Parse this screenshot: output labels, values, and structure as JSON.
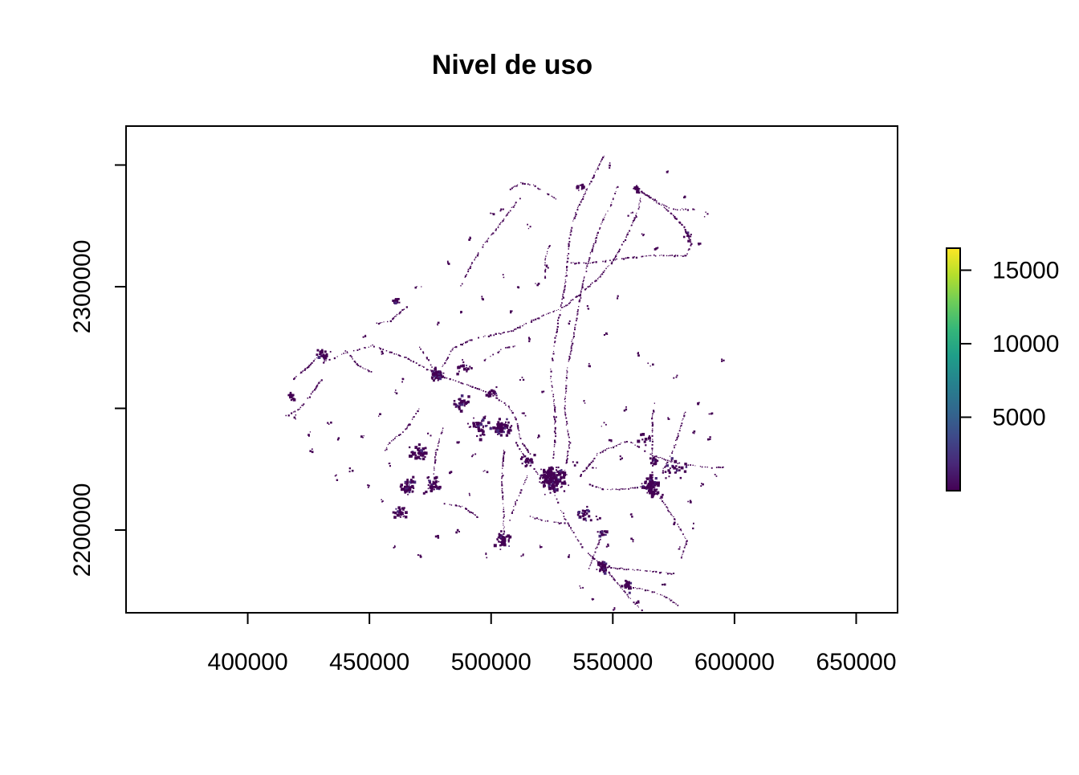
{
  "chart_data": {
    "type": "heatmap",
    "title": "Nivel de uso",
    "xlabel": "",
    "ylabel": "",
    "xlim": [
      350000,
      667000
    ],
    "ylim": [
      2166000,
      2366000
    ],
    "x_ticks": [
      400000,
      450000,
      500000,
      550000,
      600000,
      650000
    ],
    "x_tick_labels": [
      "400000",
      "450000",
      "500000",
      "550000",
      "600000",
      "650000"
    ],
    "y_ticks": [
      2200000,
      2250000,
      2300000,
      2350000
    ],
    "y_tick_labels": [
      "2200000",
      "",
      "2300000",
      ""
    ],
    "legend": {
      "position": "right",
      "range": [
        0,
        16500
      ],
      "ticks": [
        5000,
        10000,
        15000
      ],
      "tick_labels": [
        "5000",
        "10000",
        "15000"
      ],
      "colors": [
        "#440154",
        "#482878",
        "#3E4A89",
        "#31688E",
        "#26828E",
        "#1F9E89",
        "#35B779",
        "#6DCD59",
        "#B4DE2C",
        "#FDE725"
      ]
    },
    "grid": false,
    "clusters": [
      {
        "x": 525000,
        "y": 2221000,
        "r": 7000,
        "n": 180
      },
      {
        "x": 505000,
        "y": 2242000,
        "r": 5000,
        "n": 70
      },
      {
        "x": 478000,
        "y": 2264000,
        "r": 3500,
        "n": 50
      },
      {
        "x": 566000,
        "y": 2218000,
        "r": 5500,
        "n": 80
      },
      {
        "x": 505000,
        "y": 2196000,
        "r": 4000,
        "n": 60
      },
      {
        "x": 466000,
        "y": 2217000,
        "r": 4500,
        "n": 55
      },
      {
        "x": 476000,
        "y": 2218000,
        "r": 4500,
        "n": 45
      },
      {
        "x": 463000,
        "y": 2207000,
        "r": 3500,
        "n": 30
      },
      {
        "x": 546000,
        "y": 2185000,
        "r": 3000,
        "n": 35
      },
      {
        "x": 556000,
        "y": 2177000,
        "r": 2500,
        "n": 20
      },
      {
        "x": 560000,
        "y": 2340000,
        "r": 2000,
        "n": 18
      },
      {
        "x": 461000,
        "y": 2294000,
        "r": 2000,
        "n": 15
      },
      {
        "x": 431000,
        "y": 2272000,
        "r": 3500,
        "n": 22
      },
      {
        "x": 418000,
        "y": 2255000,
        "r": 2500,
        "n": 14
      },
      {
        "x": 495000,
        "y": 2242000,
        "r": 6000,
        "n": 45
      },
      {
        "x": 470000,
        "y": 2232000,
        "r": 5500,
        "n": 40
      },
      {
        "x": 488000,
        "y": 2252000,
        "r": 4500,
        "n": 28
      },
      {
        "x": 538000,
        "y": 2206000,
        "r": 4500,
        "n": 25
      },
      {
        "x": 515000,
        "y": 2228000,
        "r": 4000,
        "n": 25
      },
      {
        "x": 576000,
        "y": 2226000,
        "r": 5500,
        "n": 30
      },
      {
        "x": 567000,
        "y": 2228000,
        "r": 2500,
        "n": 15
      },
      {
        "x": 546000,
        "y": 2198000,
        "r": 3500,
        "n": 15
      },
      {
        "x": 489000,
        "y": 2267000,
        "r": 4500,
        "n": 18
      },
      {
        "x": 500000,
        "y": 2256000,
        "r": 3500,
        "n": 16
      },
      {
        "x": 537000,
        "y": 2341000,
        "r": 2000,
        "n": 10
      },
      {
        "x": 581000,
        "y": 2321000,
        "r": 2500,
        "n": 12
      },
      {
        "x": 563000,
        "y": 2237000,
        "r": 3500,
        "n": 12
      }
    ],
    "tracks": [
      [
        [
          516000,
          2231000
        ],
        [
          512000,
          2237000
        ],
        [
          510000,
          2246000
        ],
        [
          507000,
          2251000
        ],
        [
          500000,
          2256000
        ],
        [
          490000,
          2260000
        ],
        [
          478000,
          2264000
        ],
        [
          465000,
          2271000
        ],
        [
          451000,
          2276000
        ],
        [
          440000,
          2273000
        ],
        [
          428000,
          2268000
        ]
      ],
      [
        [
          478000,
          2264000
        ],
        [
          484000,
          2275000
        ],
        [
          493000,
          2279000
        ],
        [
          508000,
          2282000
        ],
        [
          518000,
          2287000
        ],
        [
          530000,
          2292000
        ],
        [
          544000,
          2304000
        ],
        [
          550000,
          2311000
        ],
        [
          555000,
          2320000
        ],
        [
          560000,
          2331000
        ],
        [
          562000,
          2340000
        ]
      ],
      [
        [
          535000,
          2221000
        ],
        [
          544000,
          2232000
        ],
        [
          556000,
          2237000
        ],
        [
          566000,
          2231000
        ],
        [
          575000,
          2228000
        ],
        [
          588000,
          2226000
        ],
        [
          596000,
          2226000
        ]
      ],
      [
        [
          525000,
          2217000
        ],
        [
          530000,
          2205000
        ],
        [
          538000,
          2192000
        ],
        [
          546000,
          2185000
        ],
        [
          552000,
          2178000
        ],
        [
          557000,
          2172000
        ],
        [
          562000,
          2167000
        ]
      ],
      [
        [
          546000,
          2185000
        ],
        [
          558000,
          2184000
        ],
        [
          569000,
          2183000
        ],
        [
          576000,
          2182000
        ]
      ],
      [
        [
          568000,
          2215000
        ],
        [
          575000,
          2205000
        ],
        [
          580000,
          2196000
        ],
        [
          578000,
          2188000
        ]
      ],
      [
        [
          557000,
          2177000
        ],
        [
          566000,
          2175000
        ],
        [
          573000,
          2172000
        ],
        [
          577000,
          2169000
        ]
      ],
      [
        [
          530000,
          2224000
        ],
        [
          532000,
          2236000
        ],
        [
          530000,
          2250000
        ],
        [
          531000,
          2266000
        ],
        [
          534000,
          2282000
        ],
        [
          537000,
          2300000
        ],
        [
          541000,
          2315000
        ],
        [
          545000,
          2326000
        ],
        [
          549000,
          2334000
        ],
        [
          552000,
          2342000
        ]
      ],
      [
        [
          560000,
          2340000
        ],
        [
          574000,
          2332000
        ],
        [
          584000,
          2332000
        ]
      ],
      [
        [
          562000,
          2339000
        ],
        [
          572000,
          2332000
        ],
        [
          579000,
          2325000
        ],
        [
          582000,
          2318000
        ],
        [
          580000,
          2313000
        ],
        [
          566000,
          2313000
        ],
        [
          555000,
          2312000
        ],
        [
          540000,
          2310000
        ],
        [
          532000,
          2310000
        ]
      ],
      [
        [
          566000,
          2221000
        ],
        [
          566000,
          2234000
        ],
        [
          566000,
          2246000
        ],
        [
          567000,
          2253000
        ]
      ],
      [
        [
          570000,
          2224000
        ],
        [
          575000,
          2234000
        ],
        [
          578000,
          2244000
        ],
        [
          580000,
          2250000
        ]
      ],
      [
        [
          546000,
          2354000
        ],
        [
          543000,
          2348000
        ],
        [
          539000,
          2340000
        ],
        [
          535000,
          2332000
        ],
        [
          532000,
          2321000
        ],
        [
          531000,
          2310000
        ],
        [
          530000,
          2300000
        ],
        [
          528000,
          2290000
        ],
        [
          526000,
          2278000
        ],
        [
          524000,
          2264000
        ],
        [
          526000,
          2250000
        ],
        [
          526000,
          2238000
        ],
        [
          525000,
          2228000
        ]
      ],
      [
        [
          522000,
          2304000
        ],
        [
          522000,
          2312000
        ],
        [
          524000,
          2318000
        ]
      ],
      [
        [
          487000,
          2300000
        ],
        [
          492000,
          2310000
        ],
        [
          497000,
          2318000
        ],
        [
          502000,
          2324000
        ],
        [
          507000,
          2331000
        ],
        [
          512000,
          2337000
        ]
      ],
      [
        [
          507000,
          2340000
        ],
        [
          512000,
          2343000
        ],
        [
          517000,
          2342000
        ],
        [
          527000,
          2336000
        ]
      ],
      [
        [
          465000,
          2292000
        ],
        [
          458000,
          2286000
        ],
        [
          452000,
          2285000
        ]
      ],
      [
        [
          478000,
          2262000
        ],
        [
          474000,
          2270000
        ],
        [
          470000,
          2276000
        ]
      ],
      [
        [
          470000,
          2250000
        ],
        [
          465000,
          2242000
        ],
        [
          458000,
          2236000
        ],
        [
          455000,
          2231000
        ]
      ],
      [
        [
          480000,
          2242000
        ],
        [
          477000,
          2232000
        ],
        [
          476000,
          2222000
        ]
      ],
      [
        [
          505000,
          2233000
        ],
        [
          504000,
          2220000
        ],
        [
          505000,
          2208000
        ],
        [
          505000,
          2198000
        ]
      ],
      [
        [
          510000,
          2236000
        ],
        [
          515000,
          2228000
        ],
        [
          520000,
          2222000
        ]
      ],
      [
        [
          430000,
          2262000
        ],
        [
          425000,
          2255000
        ],
        [
          421000,
          2250000
        ],
        [
          415000,
          2247000
        ]
      ],
      [
        [
          428000,
          2271000
        ],
        [
          423000,
          2266000
        ],
        [
          418000,
          2262000
        ]
      ],
      [
        [
          440000,
          2274000
        ],
        [
          445000,
          2268000
        ],
        [
          451000,
          2265000
        ]
      ],
      [
        [
          497000,
          2270000
        ],
        [
          505000,
          2275000
        ],
        [
          511000,
          2276000
        ]
      ],
      [
        [
          540000,
          2219000
        ],
        [
          546000,
          2217000
        ],
        [
          554000,
          2217000
        ],
        [
          562000,
          2218000
        ]
      ],
      [
        [
          545000,
          2198000
        ],
        [
          542000,
          2190000
        ],
        [
          540000,
          2184000
        ]
      ],
      [
        [
          515000,
          2223000
        ],
        [
          510000,
          2212000
        ],
        [
          507000,
          2203000
        ]
      ],
      [
        [
          530000,
          2203000
        ],
        [
          522000,
          2204000
        ],
        [
          515000,
          2206000
        ]
      ],
      [
        [
          495000,
          2205000
        ],
        [
          488000,
          2210000
        ],
        [
          480000,
          2211000
        ]
      ]
    ],
    "scatter_points": [
      [
        557000,
        2207000
      ],
      [
        548000,
        2194000
      ],
      [
        544000,
        2205000
      ],
      [
        558000,
        2196000
      ],
      [
        575000,
        2203000
      ],
      [
        512000,
        2262000
      ],
      [
        521000,
        2257000
      ],
      [
        526000,
        2247000
      ],
      [
        515000,
        2278000
      ],
      [
        508000,
        2290000
      ],
      [
        505000,
        2305000
      ],
      [
        496000,
        2296000
      ],
      [
        488000,
        2290000
      ],
      [
        511000,
        2300000
      ],
      [
        519000,
        2302000
      ],
      [
        515000,
        2325000
      ],
      [
        504000,
        2332000
      ],
      [
        532000,
        2286000
      ],
      [
        540000,
        2292000
      ],
      [
        552000,
        2296000
      ],
      [
        560000,
        2273000
      ],
      [
        565000,
        2268000
      ],
      [
        575000,
        2263000
      ],
      [
        585000,
        2253000
      ],
      [
        590000,
        2248000
      ],
      [
        595000,
        2270000
      ],
      [
        589000,
        2238000
      ],
      [
        583000,
        2240000
      ],
      [
        573000,
        2246000
      ],
      [
        555000,
        2250000
      ],
      [
        546000,
        2244000
      ],
      [
        538000,
        2253000
      ],
      [
        540000,
        2268000
      ],
      [
        547000,
        2281000
      ],
      [
        523000,
        2309000
      ],
      [
        455000,
        2212000
      ],
      [
        449000,
        2219000
      ],
      [
        458000,
        2227000
      ],
      [
        442000,
        2225000
      ],
      [
        437000,
        2238000
      ],
      [
        433000,
        2244000
      ],
      [
        425000,
        2240000
      ],
      [
        419000,
        2247000
      ],
      [
        426000,
        2233000
      ],
      [
        436000,
        2222000
      ],
      [
        447000,
        2239000
      ],
      [
        454000,
        2248000
      ],
      [
        461000,
        2257000
      ],
      [
        483000,
        2224000
      ],
      [
        491000,
        2215000
      ],
      [
        497000,
        2225000
      ],
      [
        486000,
        2200000
      ],
      [
        477000,
        2198000
      ],
      [
        470000,
        2190000
      ],
      [
        460000,
        2193000
      ],
      [
        498000,
        2190000
      ],
      [
        513000,
        2190000
      ],
      [
        520000,
        2193000
      ],
      [
        531000,
        2190000
      ],
      [
        537000,
        2177000
      ],
      [
        542000,
        2172000
      ],
      [
        550000,
        2168000
      ],
      [
        560000,
        2171000
      ],
      [
        570000,
        2178000
      ],
      [
        577000,
        2193000
      ],
      [
        583000,
        2202000
      ],
      [
        581000,
        2212000
      ],
      [
        586000,
        2219000
      ],
      [
        592000,
        2223000
      ],
      [
        553000,
        2230000
      ],
      [
        549000,
        2237000
      ],
      [
        542000,
        2226000
      ],
      [
        534000,
        2228000
      ],
      [
        519000,
        2239000
      ],
      [
        513000,
        2248000
      ],
      [
        493000,
        2231000
      ],
      [
        486000,
        2236000
      ],
      [
        474000,
        2240000
      ],
      [
        466000,
        2244000
      ],
      [
        463000,
        2262000
      ],
      [
        455000,
        2273000
      ],
      [
        448000,
        2280000
      ],
      [
        478000,
        2285000
      ],
      [
        470000,
        2300000
      ],
      [
        482000,
        2310000
      ],
      [
        490000,
        2320000
      ],
      [
        500000,
        2330000
      ],
      [
        572000,
        2348000
      ],
      [
        548000,
        2350000
      ],
      [
        557000,
        2330000
      ],
      [
        585000,
        2318000
      ],
      [
        588000,
        2330000
      ],
      [
        579000,
        2337000
      ],
      [
        568000,
        2316000
      ],
      [
        562000,
        2322000
      ]
    ]
  }
}
